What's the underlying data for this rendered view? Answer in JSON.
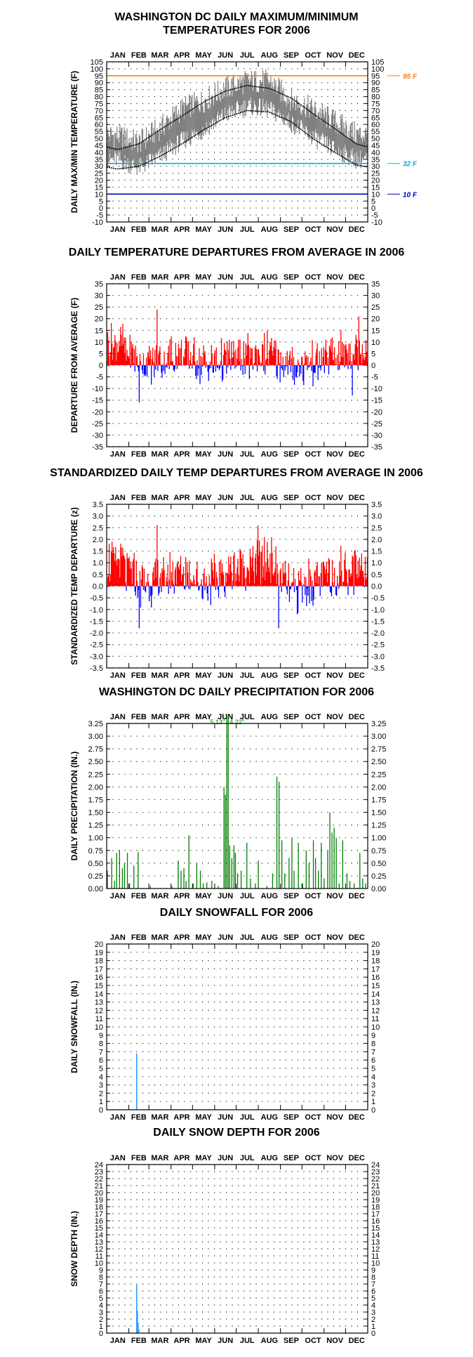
{
  "months": [
    "JAN",
    "FEB",
    "MAR",
    "APR",
    "MAY",
    "JUN",
    "JUL",
    "AUG",
    "SEP",
    "OCT",
    "NOV",
    "DEC"
  ],
  "colors": {
    "temp_series": "#808080",
    "normal_lines": "#000000",
    "ref_95": "#ff7f00",
    "ref_32": "#00b0e0",
    "ref_10": "#0000c0",
    "positive": "#ff0000",
    "negative": "#0000ff",
    "precip": "#008000",
    "snow": "#3399ff"
  },
  "chart_data": [
    {
      "id": "maxmin",
      "type": "line",
      "title": "WASHINGTON DC DAILY MAXIMUM/MINIMUM TEMPERATURES FOR 2006",
      "title_lines": [
        "WASHINGTON DC DAILY MAXIMUM/MINIMUM",
        "TEMPERATURES FOR 2006"
      ],
      "ylabel": "DAILY MAX/MIN TEMPERATURE (F)",
      "ylim": [
        -10,
        105
      ],
      "ytick_step": 5,
      "grid": true,
      "reference_lines": [
        {
          "value": 95,
          "label": "95 F"
        },
        {
          "value": 32,
          "label": "32 F"
        },
        {
          "value": 10,
          "label": "10 F"
        }
      ],
      "normals": {
        "month_mid": [
          15,
          45,
          74,
          105,
          135,
          166,
          196,
          227,
          258,
          288,
          319,
          349
        ],
        "normal_high": [
          42,
          46,
          56,
          66,
          76,
          84,
          88,
          86,
          79,
          68,
          57,
          46
        ],
        "normal_low": [
          28,
          30,
          37,
          46,
          56,
          65,
          70,
          69,
          62,
          50,
          40,
          31
        ]
      },
      "daily_range_estimate": {
        "month_mid": [
          15,
          45,
          74,
          105,
          135,
          166,
          196,
          227,
          258,
          288,
          319,
          349
        ],
        "avg_high": [
          52,
          47,
          57,
          71,
          77,
          86,
          91,
          91,
          78,
          71,
          62,
          53
        ],
        "avg_low": [
          35,
          29,
          37,
          48,
          56,
          67,
          73,
          71,
          61,
          51,
          42,
          35
        ]
      }
    },
    {
      "id": "departure",
      "type": "bar",
      "title": "DAILY TEMPERATURE DEPARTURES FROM AVERAGE IN 2006",
      "ylabel": "DEPARTURE FROM AVERAGE (F)",
      "ylim": [
        -35,
        35
      ],
      "ytick_step": 5,
      "grid": true,
      "monthly_mean_departure": [
        10,
        1,
        2,
        5,
        1,
        2,
        3,
        5,
        -1,
        1,
        5,
        7
      ],
      "extremes": [
        {
          "day": 70,
          "value": 24
        },
        {
          "day": 45,
          "value": -16
        },
        {
          "day": 352,
          "value": 21
        },
        {
          "day": 343,
          "value": -13
        }
      ]
    },
    {
      "id": "standardized",
      "type": "bar",
      "title": "STANDARDIZED DAILY TEMP DEPARTURES FROM AVERAGE IN 2006",
      "ylabel": "STANDARDIZED TEMP DEPARTURE (z)",
      "ylim": [
        -3.5,
        3.5
      ],
      "ytick_step": 0.5,
      "grid": true,
      "monthly_mean_departure": [
        1.1,
        0.1,
        0.3,
        0.7,
        0.2,
        0.5,
        0.8,
        1.2,
        -0.3,
        0.2,
        0.6,
        0.8
      ],
      "extremes": [
        {
          "day": 70,
          "value": 2.6
        },
        {
          "day": 211,
          "value": 2.6
        },
        {
          "day": 45,
          "value": -1.8
        },
        {
          "day": 240,
          "value": -1.8
        }
      ]
    },
    {
      "id": "precip",
      "type": "bar",
      "title": "WASHINGTON DC DAILY PRECIPITATION FOR 2006",
      "ylabel": "DAILY PRECIPITATION (IN.)",
      "ylim": [
        0,
        3.25
      ],
      "ytick_step": 0.25,
      "grid": true,
      "annotations": [
        "5.13\"",
        "4.22\""
      ],
      "events": [
        {
          "day": 1,
          "value": 0.35
        },
        {
          "day": 7,
          "value": 0.6
        },
        {
          "day": 11,
          "value": 0.15
        },
        {
          "day": 14,
          "value": 0.7
        },
        {
          "day": 18,
          "value": 0.75
        },
        {
          "day": 22,
          "value": 0.4
        },
        {
          "day": 25,
          "value": 0.5
        },
        {
          "day": 29,
          "value": 0.7
        },
        {
          "day": 32,
          "value": 0.1
        },
        {
          "day": 38,
          "value": 0.45
        },
        {
          "day": 44,
          "value": 0.72
        },
        {
          "day": 61,
          "value": 0.05
        },
        {
          "day": 91,
          "value": 0.05
        },
        {
          "day": 100,
          "value": 0.55
        },
        {
          "day": 104,
          "value": 0.35
        },
        {
          "day": 108,
          "value": 0.4
        },
        {
          "day": 111,
          "value": 0.15
        },
        {
          "day": 115,
          "value": 1.05
        },
        {
          "day": 121,
          "value": 0.1
        },
        {
          "day": 126,
          "value": 0.5
        },
        {
          "day": 131,
          "value": 0.35
        },
        {
          "day": 135,
          "value": 0.1
        },
        {
          "day": 140,
          "value": 0.12
        },
        {
          "day": 147,
          "value": 0.15
        },
        {
          "day": 156,
          "value": 0.05
        },
        {
          "day": 164,
          "value": 2.0
        },
        {
          "day": 166,
          "value": 1.85
        },
        {
          "day": 168,
          "value": 3.4
        },
        {
          "day": 170,
          "value": 3.4
        },
        {
          "day": 172,
          "value": 0.85
        },
        {
          "day": 175,
          "value": 0.6
        },
        {
          "day": 178,
          "value": 0.85
        },
        {
          "day": 180,
          "value": 0.7
        },
        {
          "day": 183,
          "value": 0.3
        },
        {
          "day": 188,
          "value": 0.35
        },
        {
          "day": 196,
          "value": 0.9
        },
        {
          "day": 201,
          "value": 0.2
        },
        {
          "day": 208,
          "value": 0.1
        },
        {
          "day": 212,
          "value": 0.55
        },
        {
          "day": 224,
          "value": 0.05
        },
        {
          "day": 232,
          "value": 0.3
        },
        {
          "day": 238,
          "value": 2.2
        },
        {
          "day": 241,
          "value": 2.1
        },
        {
          "day": 245,
          "value": 0.95
        },
        {
          "day": 249,
          "value": 0.3
        },
        {
          "day": 255,
          "value": 0.6
        },
        {
          "day": 259,
          "value": 1.0
        },
        {
          "day": 262,
          "value": 0.35
        },
        {
          "day": 268,
          "value": 0.9
        },
        {
          "day": 274,
          "value": 0.1
        },
        {
          "day": 279,
          "value": 0.75
        },
        {
          "day": 283,
          "value": 0.5
        },
        {
          "day": 289,
          "value": 0.95
        },
        {
          "day": 292,
          "value": 0.6
        },
        {
          "day": 296,
          "value": 0.35
        },
        {
          "day": 300,
          "value": 0.9
        },
        {
          "day": 304,
          "value": 0.2
        },
        {
          "day": 309,
          "value": 0.75
        },
        {
          "day": 312,
          "value": 1.5
        },
        {
          "day": 315,
          "value": 1.1
        },
        {
          "day": 318,
          "value": 1.2
        },
        {
          "day": 321,
          "value": 1.0
        },
        {
          "day": 325,
          "value": 0.1
        },
        {
          "day": 330,
          "value": 0.95
        },
        {
          "day": 336,
          "value": 0.3
        },
        {
          "day": 340,
          "value": 0.15
        },
        {
          "day": 346,
          "value": 0.1
        },
        {
          "day": 354,
          "value": 0.7
        },
        {
          "day": 358,
          "value": 0.2
        },
        {
          "day": 362,
          "value": 0.1
        }
      ]
    },
    {
      "id": "snowfall",
      "type": "bar",
      "title": "DAILY SNOWFALL FOR 2006",
      "ylabel": "DAILY SNOWFALL (IN.)",
      "ylim": [
        0,
        20
      ],
      "ytick_step": 1,
      "grid": true,
      "events": [
        {
          "day": 42,
          "value": 6.8
        }
      ]
    },
    {
      "id": "snowdepth",
      "type": "bar",
      "title": "DAILY SNOW DEPTH FOR 2006",
      "ylabel": "SNOW DEPTH (IN.)",
      "ylim": [
        0,
        24
      ],
      "ytick_step": 1,
      "grid": true,
      "events": [
        {
          "day": 42,
          "value": 6.9
        },
        {
          "day": 43,
          "value": 3.2
        },
        {
          "day": 44,
          "value": 1.5
        },
        {
          "day": 45,
          "value": 0.5
        }
      ]
    }
  ]
}
